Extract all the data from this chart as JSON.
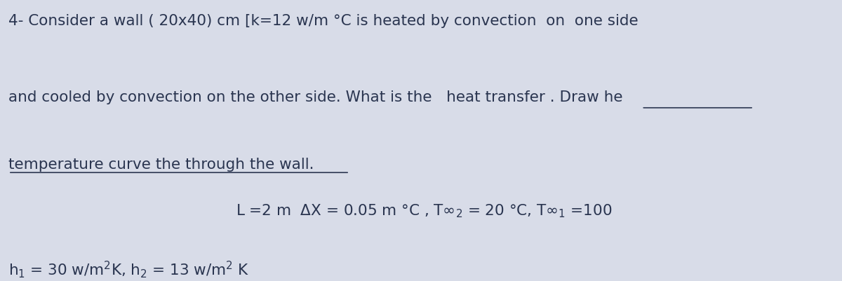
{
  "background_color": "#d8dce8",
  "line1": "4- Consider a wall ( 20x40) cm [k=12 w/m °C is heated by convection  on  one side",
  "line2": "and cooled by convection on the other side. What is the   heat transfer . Draw he",
  "line3_plain": "temperature curve the through the wall.",
  "line4_latex": "L =2 m  $\\Delta$X = 0.05 m °C , T$\\infty_2$ = 20 °C, T$\\infty_1$ =100",
  "line5_latex": "h$_1$ = 30 w/m$^2$K, h$_2$ = 13 w/m$^2$ K",
  "text_color": "#2a3550",
  "font_size_main": 15.5
}
